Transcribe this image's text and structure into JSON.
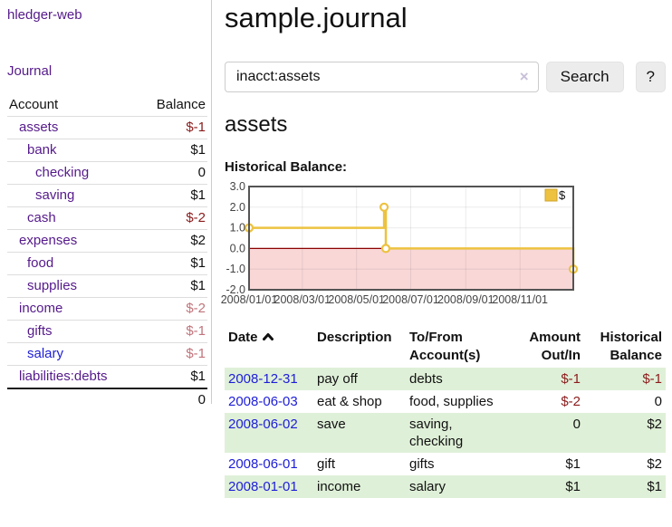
{
  "colors": {
    "link-blue": "#1d1dd8",
    "link-purple": "#551a8b",
    "neg-strong": "#8b1c1c",
    "neg-soft": "#c1747b",
    "row-green": "#dff0d8",
    "rule-light": "#dddddd",
    "rule-dark": "#1c1c1c",
    "divider": "#cccccc",
    "button-bg": "#ececec"
  },
  "sidebar": {
    "brand": "hledger-web",
    "journal_link": "Journal",
    "headers": {
      "account": "Account",
      "balance": "Balance"
    },
    "accounts": [
      {
        "name": "assets",
        "balance": "$-1",
        "depth": 1,
        "bold": true,
        "link": "purple",
        "tone": "neg-strong"
      },
      {
        "name": "bank",
        "balance": "$1",
        "depth": 2,
        "bold": true,
        "link": "purple",
        "tone": "normal"
      },
      {
        "name": "checking",
        "balance": "0",
        "depth": 3,
        "bold": true,
        "link": "purple",
        "tone": "normal"
      },
      {
        "name": "saving",
        "balance": "$1",
        "depth": 3,
        "bold": true,
        "link": "purple",
        "tone": "normal"
      },
      {
        "name": "cash",
        "balance": "$-2",
        "depth": 2,
        "bold": true,
        "link": "purple",
        "tone": "neg-strong"
      },
      {
        "name": "expenses",
        "balance": "$2",
        "depth": 1,
        "bold": false,
        "link": "purple",
        "tone": "normal"
      },
      {
        "name": "food",
        "balance": "$1",
        "depth": 2,
        "bold": false,
        "link": "purple",
        "tone": "normal"
      },
      {
        "name": "supplies",
        "balance": "$1",
        "depth": 2,
        "bold": false,
        "link": "purple",
        "tone": "normal"
      },
      {
        "name": "income",
        "balance": "$-2",
        "depth": 1,
        "bold": false,
        "link": "purple",
        "tone": "neg-soft"
      },
      {
        "name": "gifts",
        "balance": "$-1",
        "depth": 2,
        "bold": false,
        "link": "purple",
        "tone": "neg-soft"
      },
      {
        "name": "salary",
        "balance": "$-1",
        "depth": 2,
        "bold": false,
        "link": "blue",
        "tone": "neg-soft"
      },
      {
        "name": "liabilities:debts",
        "balance": "$1",
        "depth": 1,
        "bold": false,
        "link": "purple",
        "tone": "normal"
      }
    ],
    "total": "0"
  },
  "main": {
    "title": "sample.journal",
    "search": {
      "value": "inacct:assets",
      "clear_label": "×",
      "button_label": "Search",
      "help_label": "?"
    },
    "account_heading": "assets",
    "chart_title": "Historical Balance:"
  },
  "chart_data": {
    "type": "line",
    "step": true,
    "title": "Historical Balance:",
    "x": [
      "2008-01-01",
      "2008-06-01",
      "2008-06-03",
      "2008-12-31"
    ],
    "series": [
      {
        "name": "$",
        "color": "#edc240",
        "values": [
          1,
          2,
          0,
          -1
        ]
      }
    ],
    "x_ticks": [
      "2008/01/01",
      "2008/03/01",
      "2008/05/01",
      "2008/07/01",
      "2008/09/01",
      "2008/11/01"
    ],
    "y_ticks": [
      "3.0",
      "2.0",
      "1.0",
      "0.0",
      "-1.0",
      "-2.0"
    ],
    "xlim": [
      "2008-01-01",
      "2008-12-31"
    ],
    "ylim": [
      -2,
      3
    ],
    "grid": true,
    "legend": {
      "label": "$",
      "position": "top-right"
    },
    "negative_region_color": "#f9d7d7",
    "zero_line_color": "#8b0000",
    "border_color": "#545454",
    "point_fill": "#ffffff"
  },
  "register": {
    "headers": {
      "date": "Date",
      "description": "Description",
      "account": [
        "To/From",
        "Account(s)"
      ],
      "amount": [
        "Amount",
        "Out/In"
      ],
      "balance": [
        "Historical",
        "Balance"
      ]
    },
    "rows": [
      {
        "date": "2008-12-31",
        "description": "pay off",
        "accounts": "debts",
        "amount": "$-1",
        "balance": "$-1",
        "amount_tone": "neg",
        "balance_tone": "neg",
        "shaded": true
      },
      {
        "date": "2008-06-03",
        "description": "eat & shop",
        "accounts": "food, supplies",
        "amount": "$-2",
        "balance": "0",
        "amount_tone": "neg",
        "balance_tone": "normal",
        "shaded": false
      },
      {
        "date": "2008-06-02",
        "description": "save",
        "accounts": "saving, checking",
        "amount": "0",
        "balance": "$2",
        "amount_tone": "normal",
        "balance_tone": "normal",
        "shaded": true
      },
      {
        "date": "2008-06-01",
        "description": "gift",
        "accounts": "gifts",
        "amount": "$1",
        "balance": "$2",
        "amount_tone": "normal",
        "balance_tone": "normal",
        "shaded": false
      },
      {
        "date": "2008-01-01",
        "description": "income",
        "accounts": "salary",
        "amount": "$1",
        "balance": "$1",
        "amount_tone": "normal",
        "balance_tone": "normal",
        "shaded": true
      }
    ]
  }
}
